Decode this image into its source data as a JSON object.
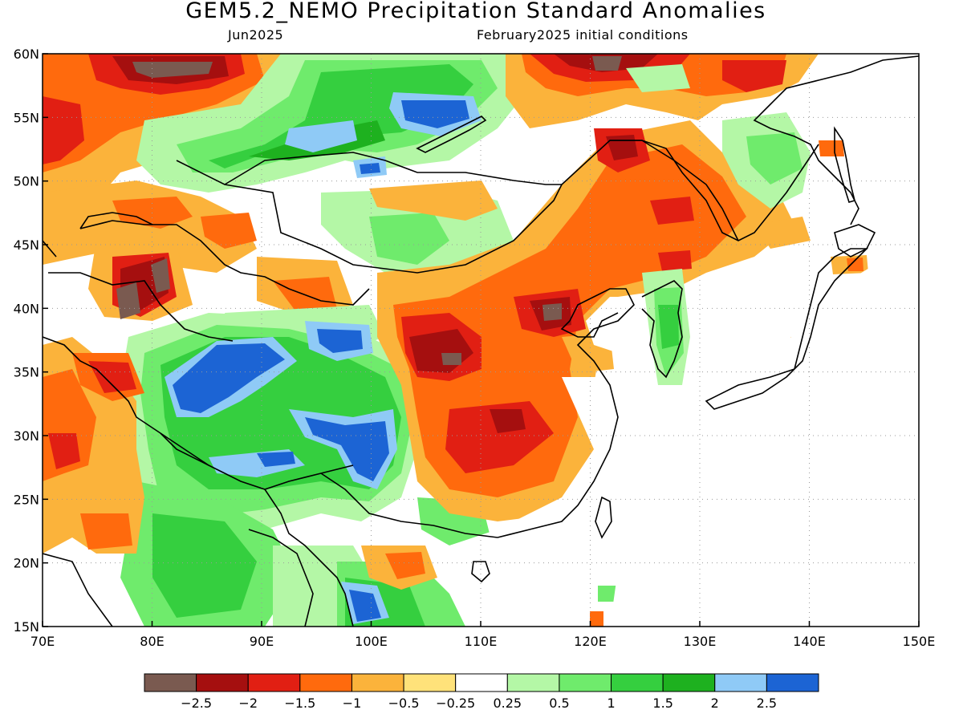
{
  "title": "GEM5.2_NEMO Precipitation Standard Anomalies",
  "subtitle_left": "Jun2025",
  "subtitle_right": "February2025 initial conditions",
  "map": {
    "lon_range": [
      70,
      150
    ],
    "lat_range": [
      15,
      60
    ],
    "lon_ticks": [
      "70E",
      "80E",
      "90E",
      "100E",
      "110E",
      "120E",
      "130E",
      "140E",
      "150E"
    ],
    "lat_ticks": [
      "15N",
      "20N",
      "25N",
      "30N",
      "35N",
      "40N",
      "45N",
      "50N",
      "55N",
      "60N"
    ],
    "gridlines": "dotted",
    "coastlines_and_borders": true
  },
  "colorbar": {
    "colors": [
      "#7a5a50",
      "#a50f0f",
      "#e11f13",
      "#ff6a0d",
      "#fbb33b",
      "#ffe27a",
      "#ffffff",
      "#b4f7a6",
      "#6feb6c",
      "#35cf3f",
      "#1eb11f",
      "#8fcaf6",
      "#1c64d4"
    ],
    "labels": [
      "−2.5",
      "−2",
      "−1.5",
      "−1",
      "−0.5",
      "−0.25",
      "0.25",
      "0.5",
      "1",
      "1.5",
      "2",
      "2.5"
    ]
  }
}
